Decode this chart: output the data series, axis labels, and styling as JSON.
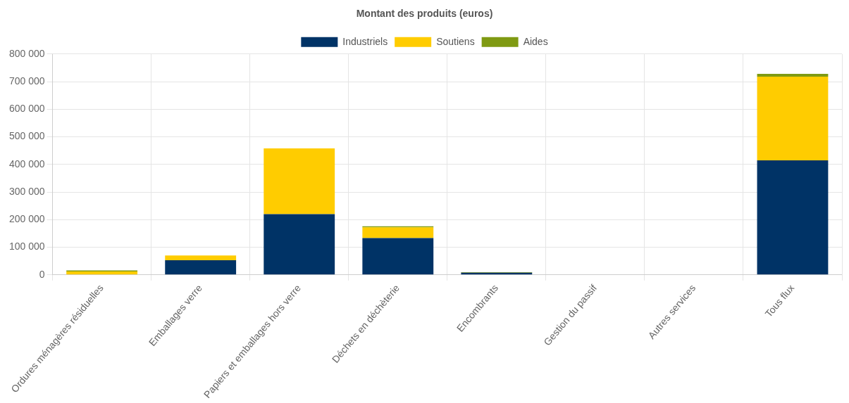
{
  "chart_data": {
    "type": "bar",
    "title": "Montant des produits (euros)",
    "stacked": true,
    "grid": true,
    "legend": "top",
    "categories": [
      "Ordures ménagères résiduelles",
      "Emballages verre",
      "Papiers et emballages hors verre",
      "Déchets en déchèterie",
      "Encombrants",
      "Gestion du passif",
      "Autres services",
      "Tous flux"
    ],
    "series": [
      {
        "name": "Industriels",
        "color": "#003366",
        "values": [
          null,
          53000,
          220000,
          133000,
          8000,
          0,
          0,
          415000
        ]
      },
      {
        "name": "Soutiens",
        "color": "#ffcc00",
        "values": [
          12000,
          17000,
          238000,
          39000,
          0,
          0,
          0,
          303000
        ]
      },
      {
        "name": "Aides",
        "color": "#7f9a12",
        "values": [
          4000,
          null,
          null,
          4000,
          2000,
          0,
          0,
          10000
        ]
      }
    ],
    "ylim": [
      0,
      800000
    ],
    "yticks": [
      0,
      100000,
      200000,
      300000,
      400000,
      500000,
      600000,
      700000,
      800000
    ]
  }
}
